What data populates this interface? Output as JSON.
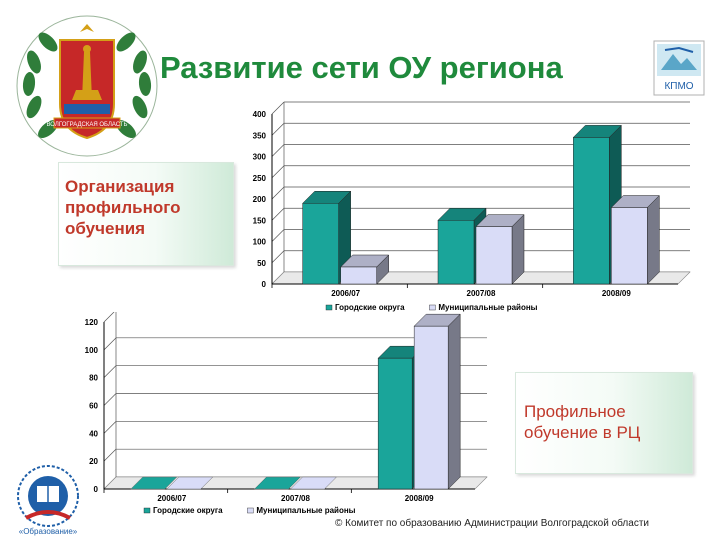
{
  "slide": {
    "title": "Развитие сети ОУ региона",
    "callout_top": "Организация профильного обучения",
    "callout_bottom": "Профильное обучение в РЦ",
    "footer": "© Комитет по образованию Администрации Волгоградской области",
    "logo_text_emblem": "ВОЛГОГРАДСКАЯ ОБЛАСТЬ",
    "logo_text_kpmo": "КПМО",
    "logo_text_program": "«Образование»",
    "colors": {
      "title": "#1f8a3c",
      "callout_text": "#c0392b",
      "series_1": "#1aa59a",
      "series_2": "#d9dcf7"
    }
  },
  "chart_data": [
    {
      "type": "bar",
      "categories": [
        "2006/07",
        "2007/08",
        "2008/09"
      ],
      "series": [
        {
          "name": "Городские округа",
          "values": [
            190,
            150,
            345
          ]
        },
        {
          "name": "Муниципальные районы",
          "values": [
            40,
            135,
            180
          ]
        }
      ],
      "ylim": [
        0,
        400
      ],
      "yticks": [
        0,
        50,
        100,
        150,
        200,
        250,
        300,
        350,
        400
      ],
      "legend": "bottom",
      "grid": true
    },
    {
      "type": "bar",
      "categories": [
        "2006/07",
        "2007/08",
        "2008/09"
      ],
      "series": [
        {
          "name": "Городские округа",
          "values": [
            0,
            0,
            94
          ]
        },
        {
          "name": "Муниципальные районы",
          "values": [
            0,
            0,
            117
          ]
        }
      ],
      "ylim": [
        0,
        120
      ],
      "yticks": [
        0,
        20,
        40,
        60,
        80,
        100,
        120
      ],
      "legend": "bottom",
      "grid": true
    }
  ]
}
